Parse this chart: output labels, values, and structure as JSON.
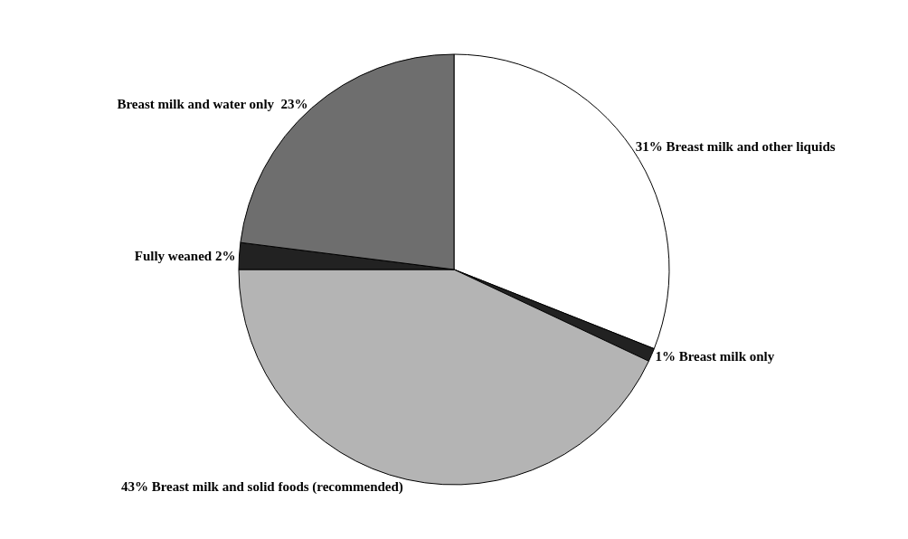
{
  "chart_data": {
    "type": "pie",
    "categories": [
      "31% Breast milk and other liquids",
      "1% Breast milk only",
      "43% Breast milk and solid foods (recommended)",
      "Fully weaned 2%",
      "Breast milk and water only  23%"
    ],
    "values": [
      31,
      1,
      43,
      2,
      23
    ],
    "colors": [
      "#ffffff",
      "#222222",
      "#b4b4b4",
      "#222222",
      "#6e6e6e"
    ],
    "legend": false
  }
}
